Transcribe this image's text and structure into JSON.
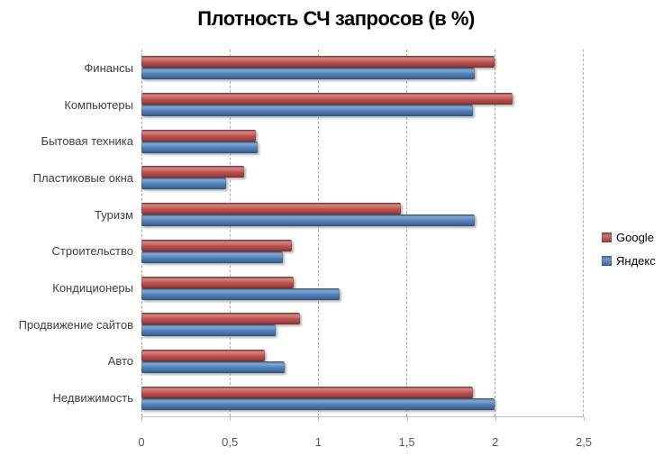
{
  "chart_data": {
    "type": "bar",
    "orientation": "horizontal",
    "title": "Плотность СЧ запросов (в %)",
    "categories": [
      "Финансы",
      "Компьютеры",
      "Бытовая техника",
      "Пластиковые окна",
      "Туризм",
      "Строительство",
      "Кондиционеры",
      "Продвижение сайтов",
      "Авто",
      "Недвижимость"
    ],
    "series": [
      {
        "name": "Google",
        "color": "#c0504d",
        "values": [
          2.0,
          2.1,
          0.65,
          0.58,
          1.47,
          0.85,
          0.86,
          0.9,
          0.7,
          1.88
        ]
      },
      {
        "name": "Яндекс",
        "color": "#4f81bd",
        "values": [
          1.89,
          1.88,
          0.66,
          0.48,
          1.89,
          0.8,
          1.12,
          0.76,
          0.81,
          2.0
        ]
      }
    ],
    "xlim": [
      0,
      2.5
    ],
    "xticks": [
      "0",
      "0,5",
      "1",
      "1,5",
      "2",
      "2,5"
    ],
    "grid": true,
    "gridline_style": "dashed",
    "legend_position": "right",
    "colors": {
      "gridline": "#ababab",
      "axis_line": "#bfbfbf",
      "tick_label": "#595959",
      "category_label": "#3f3f3f",
      "title": "#000000"
    }
  }
}
